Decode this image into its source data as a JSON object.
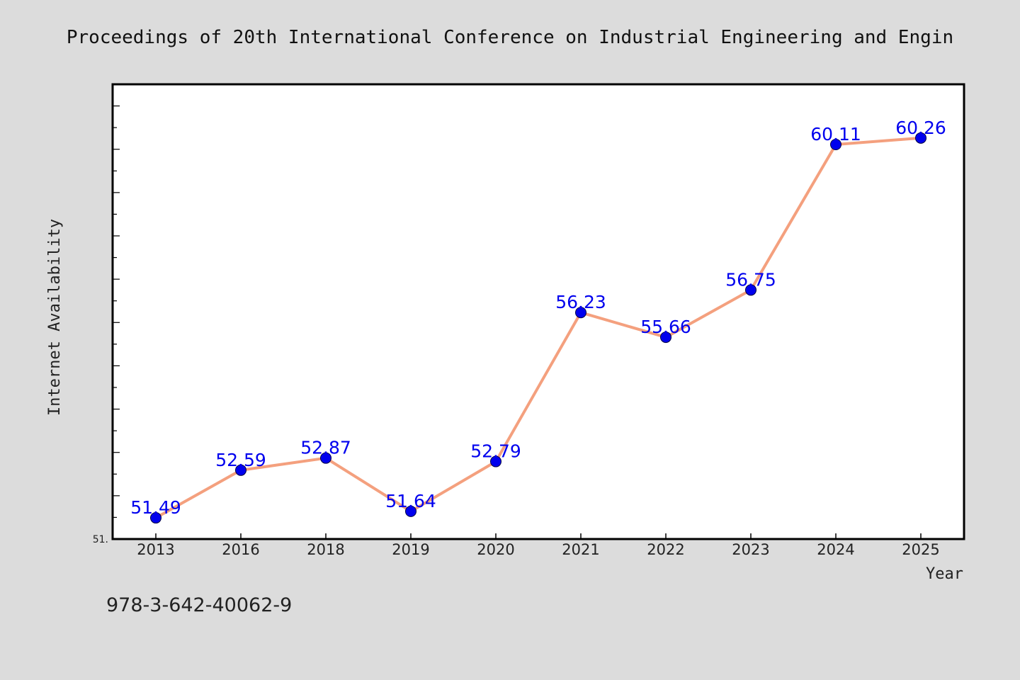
{
  "chart_data": {
    "type": "line",
    "title": "Proceedings of 20th International Conference on Industrial Engineering and Engin",
    "xlabel": "Year",
    "ylabel": "Internet Availability",
    "categories": [
      "2013",
      "2016",
      "2018",
      "2019",
      "2020",
      "2021",
      "2022",
      "2023",
      "2024",
      "2025"
    ],
    "series": [
      {
        "values": [
          51.49,
          52.59,
          52.87,
          51.64,
          52.79,
          56.23,
          55.66,
          56.75,
          60.11,
          60.26
        ],
        "labels": [
          "51.49",
          "52.59",
          "52.87",
          "51.64",
          "52.79",
          "56.23",
          "55.66",
          "56.75",
          "60.11",
          "60.26"
        ]
      }
    ],
    "ylim": [
      51.0,
      61.5
    ],
    "ytick_label": "51.",
    "grid": false,
    "legend": "none",
    "colors": {
      "line": "#f4a07e",
      "marker": "#0000ee",
      "label": "#0000ee",
      "frame": "#000000",
      "plot_bg": "#ffffff",
      "page_bg": "#dcdcdc"
    }
  },
  "footer": {
    "isbn": "978-3-642-40062-9"
  }
}
